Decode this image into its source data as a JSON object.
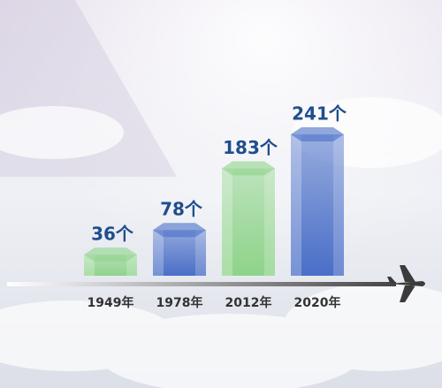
{
  "chart_data": {
    "type": "bar",
    "categories": [
      "1949年",
      "1978年",
      "2012年",
      "2020年"
    ],
    "values": [
      36,
      78,
      183,
      241
    ],
    "value_labels": [
      "36个",
      "78个",
      "183个",
      "241个"
    ],
    "colors": [
      "#8fd48a",
      "#4a6fc8",
      "#8fd48a",
      "#4a6fc8"
    ]
  }
}
